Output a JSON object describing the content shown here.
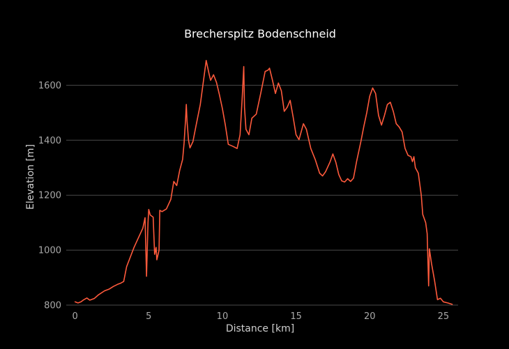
{
  "chart_data": {
    "type": "line",
    "title": "Brecherspitz Bodenschneid",
    "xlabel": "Distance [km]",
    "ylabel": "Elevation [m]",
    "xlim": [
      -0.6,
      26.0
    ],
    "ylim": [
      795,
      1720
    ],
    "xticks": [
      0,
      5,
      10,
      15,
      20,
      25
    ],
    "yticks": [
      800,
      1000,
      1200,
      1400,
      1600
    ],
    "grid": "horizontal",
    "colors": {
      "background": "#000000",
      "line": "#ff5a3c",
      "grid": "#4a4a4a"
    },
    "series": [
      {
        "color": "#ff5a3c",
        "points": [
          [
            0.0,
            812
          ],
          [
            0.2,
            808
          ],
          [
            0.4,
            812
          ],
          [
            0.6,
            820
          ],
          [
            0.8,
            826
          ],
          [
            1.0,
            818
          ],
          [
            1.3,
            824
          ],
          [
            1.6,
            838
          ],
          [
            2.0,
            852
          ],
          [
            2.3,
            858
          ],
          [
            2.6,
            868
          ],
          [
            2.9,
            876
          ],
          [
            3.1,
            880
          ],
          [
            3.3,
            886
          ],
          [
            3.5,
            940
          ],
          [
            3.7,
            968
          ],
          [
            4.0,
            1010
          ],
          [
            4.3,
            1045
          ],
          [
            4.6,
            1080
          ],
          [
            4.75,
            1118
          ],
          [
            4.85,
            905
          ],
          [
            4.95,
            1100
          ],
          [
            5.0,
            1148
          ],
          [
            5.1,
            1128
          ],
          [
            5.3,
            1120
          ],
          [
            5.4,
            985
          ],
          [
            5.5,
            1010
          ],
          [
            5.55,
            965
          ],
          [
            5.7,
            1000
          ],
          [
            5.75,
            1145
          ],
          [
            5.9,
            1140
          ],
          [
            6.2,
            1150
          ],
          [
            6.5,
            1185
          ],
          [
            6.7,
            1250
          ],
          [
            6.9,
            1235
          ],
          [
            7.1,
            1290
          ],
          [
            7.3,
            1330
          ],
          [
            7.4,
            1390
          ],
          [
            7.5,
            1475
          ],
          [
            7.55,
            1530
          ],
          [
            7.6,
            1470
          ],
          [
            7.7,
            1400
          ],
          [
            7.8,
            1372
          ],
          [
            8.0,
            1395
          ],
          [
            8.2,
            1450
          ],
          [
            8.5,
            1530
          ],
          [
            8.7,
            1610
          ],
          [
            8.8,
            1650
          ],
          [
            8.9,
            1690
          ],
          [
            9.1,
            1640
          ],
          [
            9.2,
            1618
          ],
          [
            9.4,
            1638
          ],
          [
            9.6,
            1610
          ],
          [
            9.8,
            1565
          ],
          [
            10.0,
            1515
          ],
          [
            10.2,
            1455
          ],
          [
            10.4,
            1385
          ],
          [
            10.7,
            1378
          ],
          [
            11.0,
            1370
          ],
          [
            11.2,
            1420
          ],
          [
            11.35,
            1560
          ],
          [
            11.45,
            1668
          ],
          [
            11.5,
            1520
          ],
          [
            11.6,
            1440
          ],
          [
            11.8,
            1420
          ],
          [
            12.0,
            1480
          ],
          [
            12.3,
            1495
          ],
          [
            12.6,
            1570
          ],
          [
            12.9,
            1650
          ],
          [
            13.1,
            1655
          ],
          [
            13.2,
            1662
          ],
          [
            13.4,
            1618
          ],
          [
            13.6,
            1570
          ],
          [
            13.8,
            1608
          ],
          [
            14.0,
            1580
          ],
          [
            14.2,
            1505
          ],
          [
            14.4,
            1520
          ],
          [
            14.6,
            1545
          ],
          [
            14.8,
            1485
          ],
          [
            15.0,
            1420
          ],
          [
            15.2,
            1402
          ],
          [
            15.5,
            1460
          ],
          [
            15.7,
            1440
          ],
          [
            16.0,
            1370
          ],
          [
            16.3,
            1330
          ],
          [
            16.6,
            1280
          ],
          [
            16.8,
            1270
          ],
          [
            17.0,
            1285
          ],
          [
            17.3,
            1320
          ],
          [
            17.5,
            1350
          ],
          [
            17.7,
            1320
          ],
          [
            17.9,
            1275
          ],
          [
            18.1,
            1252
          ],
          [
            18.3,
            1248
          ],
          [
            18.5,
            1260
          ],
          [
            18.7,
            1250
          ],
          [
            18.9,
            1262
          ],
          [
            19.1,
            1320
          ],
          [
            19.4,
            1395
          ],
          [
            19.6,
            1450
          ],
          [
            19.8,
            1500
          ],
          [
            20.0,
            1560
          ],
          [
            20.2,
            1590
          ],
          [
            20.4,
            1570
          ],
          [
            20.6,
            1490
          ],
          [
            20.8,
            1455
          ],
          [
            21.0,
            1490
          ],
          [
            21.2,
            1530
          ],
          [
            21.4,
            1538
          ],
          [
            21.6,
            1505
          ],
          [
            21.8,
            1460
          ],
          [
            22.0,
            1448
          ],
          [
            22.2,
            1430
          ],
          [
            22.4,
            1370
          ],
          [
            22.6,
            1345
          ],
          [
            22.8,
            1340
          ],
          [
            22.9,
            1322
          ],
          [
            23.0,
            1340
          ],
          [
            23.1,
            1300
          ],
          [
            23.3,
            1280
          ],
          [
            23.5,
            1200
          ],
          [
            23.6,
            1130
          ],
          [
            23.8,
            1100
          ],
          [
            23.9,
            1060
          ],
          [
            24.0,
            870
          ],
          [
            24.05,
            1005
          ],
          [
            24.2,
            950
          ],
          [
            24.4,
            890
          ],
          [
            24.6,
            820
          ],
          [
            24.8,
            825
          ],
          [
            25.0,
            812
          ],
          [
            25.3,
            808
          ],
          [
            25.6,
            803
          ]
        ]
      }
    ]
  }
}
